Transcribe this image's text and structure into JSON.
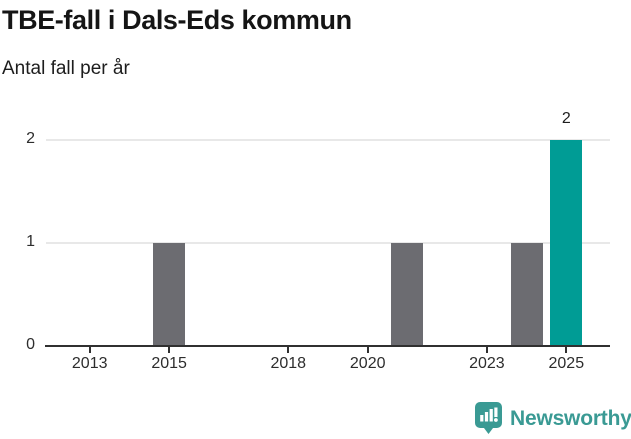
{
  "header": {
    "title": "TBE-fall i Dals-Eds kommun",
    "subtitle": "Antal fall per år"
  },
  "chart_data": {
    "type": "bar",
    "title": "TBE-fall i Dals-Eds kommun",
    "subtitle": "Antal fall per år",
    "bars": [
      {
        "year": 2015,
        "value": 1,
        "highlight": false,
        "label": ""
      },
      {
        "year": 2021,
        "value": 1,
        "highlight": false,
        "label": ""
      },
      {
        "year": 2024,
        "value": 1,
        "highlight": false,
        "label": ""
      },
      {
        "year": 2025,
        "value": 2,
        "highlight": true,
        "label": "2"
      }
    ],
    "xticks": [
      "2013",
      "2015",
      "2018",
      "2020",
      "2023",
      "2025"
    ],
    "yticks": [
      "0",
      "1",
      "2"
    ],
    "xlim": [
      2011.9,
      2026.1
    ],
    "ylim": [
      0,
      2
    ],
    "grid": "horizontal-y-only",
    "legend": "none",
    "colors": {
      "bar_default": "#6c6c71",
      "bar_highlight": "#009c95",
      "axis": "#303030",
      "gridline": "#e8e8e8",
      "tick_text": "#2d2d2d",
      "label_text": "#1d1d1d"
    }
  },
  "footer": {
    "brand_name": "Newsworthy",
    "brand_color": "#3a9a94",
    "logo_icon": "bar-chart-speech-bubble-icon"
  }
}
